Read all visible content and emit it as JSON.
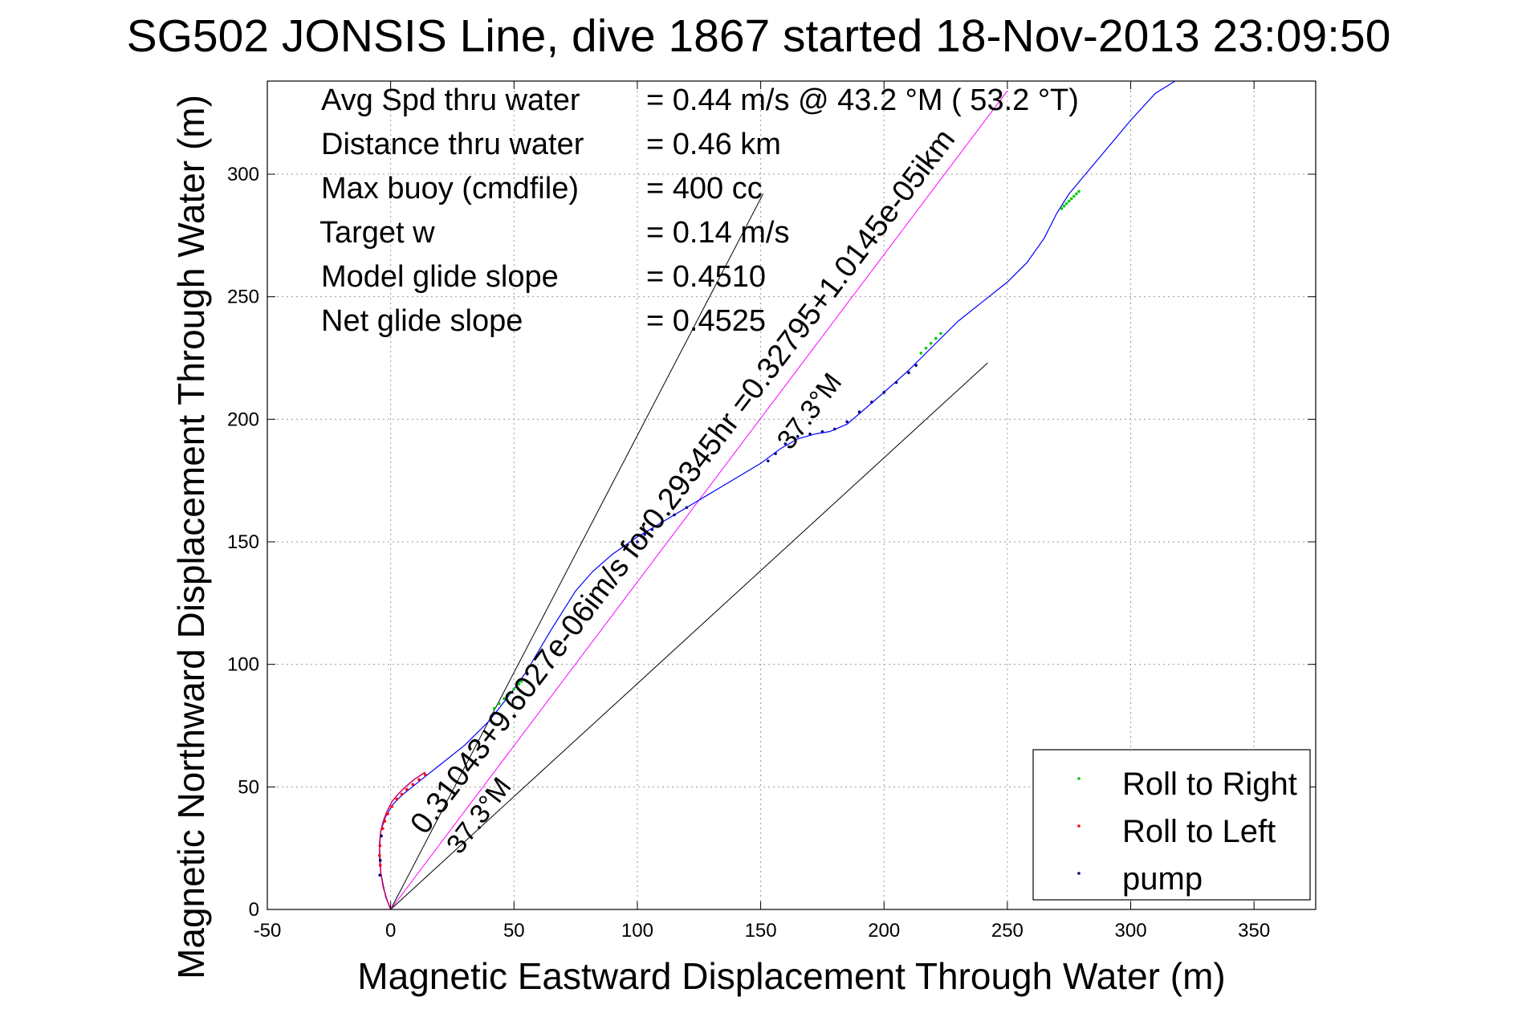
{
  "chart_data": {
    "type": "scatter",
    "title": "SG502 JONSIS Line, dive 1867 started 18-Nov-2013 23:09:50",
    "xlabel": "Magnetic Eastward Displacement Through Water (m)",
    "ylabel": "Magnetic Northward Displacement Through Water (m)",
    "xlim": [
      -50,
      375
    ],
    "ylim": [
      0,
      338
    ],
    "xticks": [
      -50,
      0,
      50,
      100,
      150,
      200,
      250,
      300,
      350
    ],
    "yticks": [
      0,
      50,
      100,
      150,
      200,
      250,
      300
    ],
    "grid": true,
    "legend_position": "bottom-right",
    "colors": {
      "track": "#0000ff",
      "roll_right": "#00cc00",
      "roll_left": "#ff0000",
      "pump": "#000080",
      "fit_line": "#ff00ff",
      "guide_line": "#000000"
    },
    "stats": [
      {
        "label": "Avg Spd thru water",
        "value": "=  0.44 m/s @  43.2 °M ( 53.2 °T)"
      },
      {
        "label": "Distance thru water",
        "value": "=  0.46 km"
      },
      {
        "label": "Max buoy (cmdfile)",
        "value": "= 400 cc"
      },
      {
        "label": "Target w",
        "value": "= 0.14 m/s"
      },
      {
        "label": "Model glide slope",
        "value": "= 0.4510"
      },
      {
        "label": "Net glide slope",
        "value": "= 0.4525"
      }
    ],
    "annotations": [
      {
        "text": "0.31043+9.6027e-06im/s for0.29345hr =0.32795+1.0145e-05ikm",
        "x": 14,
        "y": 30,
        "angle": 37.3
      },
      {
        "text": "37.3°M",
        "x": 28,
        "y": 22,
        "angle": 37.3
      },
      {
        "text": "37.3°M",
        "x": 162,
        "y": 187,
        "angle": 37.3
      }
    ],
    "legend": [
      {
        "label": "Roll to Right",
        "color": "#00cc00"
      },
      {
        "label": "Roll to Left",
        "color": "#ff0000"
      },
      {
        "label": "pump",
        "color": "#000080"
      }
    ],
    "track": {
      "x": [
        0,
        -2,
        -4,
        -4.5,
        -4,
        -2,
        1,
        5,
        10,
        15,
        20,
        30,
        40,
        47,
        50,
        55,
        65,
        75,
        82,
        90,
        100,
        110,
        120,
        130,
        140,
        150,
        158,
        165,
        172,
        178,
        185,
        192,
        200,
        210,
        220,
        230,
        240,
        250,
        258,
        265,
        270,
        275,
        280,
        290,
        300,
        310,
        318
      ],
      "y": [
        0,
        5,
        15,
        25,
        32,
        38,
        43,
        47,
        51,
        55,
        59,
        67,
        77,
        86,
        90,
        97,
        114,
        130,
        138,
        145,
        152,
        158,
        164,
        170,
        176,
        182,
        188,
        192,
        194,
        195,
        198,
        204,
        211,
        220,
        230,
        240,
        248,
        256,
        264,
        274,
        284,
        292,
        298,
        310,
        322,
        333,
        338
      ]
    },
    "roll_right": {
      "x": [
        42,
        44,
        46,
        48,
        50,
        52,
        53,
        215,
        217,
        219,
        221,
        223,
        272,
        273,
        274,
        275,
        276,
        277,
        278,
        279
      ],
      "y": [
        82,
        84,
        86,
        88,
        90,
        92,
        93,
        227,
        229,
        231,
        233,
        235,
        286,
        287,
        288,
        289,
        290,
        291,
        292,
        293
      ]
    },
    "roll_left": {
      "x": [
        -4.2,
        -4.5,
        -4.3,
        -3.8,
        -3.2,
        -2.4,
        -1.2,
        0.5,
        2.5,
        4.5,
        6.5,
        9,
        11.5,
        14
      ],
      "y": [
        18,
        22,
        26,
        30,
        33,
        36,
        39,
        42,
        45,
        47,
        49,
        51,
        53,
        55
      ],
      "curve_x": [
        0,
        -1.5,
        -3,
        -4,
        -4.5,
        -4.5,
        -4,
        -3,
        -1.5,
        0.5,
        3,
        6,
        9.5,
        14
      ],
      "curve_y": [
        0,
        4,
        9,
        15,
        21,
        27,
        32,
        36,
        40,
        44,
        47,
        50,
        53,
        56
      ]
    },
    "pump": {
      "x": [
        -4.4,
        -4.2,
        -3.8,
        100,
        103,
        106,
        110,
        115,
        120,
        153,
        156,
        160,
        165,
        170,
        175,
        180,
        185,
        190,
        195,
        200,
        205,
        210,
        213
      ],
      "y": [
        14,
        20,
        30,
        150,
        153,
        155,
        158,
        161,
        164,
        183,
        186,
        190,
        193,
        194,
        195,
        196,
        199,
        203,
        207,
        211,
        215,
        219,
        222
      ]
    },
    "fit_line": {
      "x": [
        0,
        250
      ],
      "y": [
        0,
        334
      ]
    },
    "guide_lines": [
      {
        "x": [
          0,
          151
        ],
        "y": [
          0,
          292
        ]
      },
      {
        "x": [
          0,
          242
        ],
        "y": [
          0,
          223
        ]
      }
    ]
  }
}
